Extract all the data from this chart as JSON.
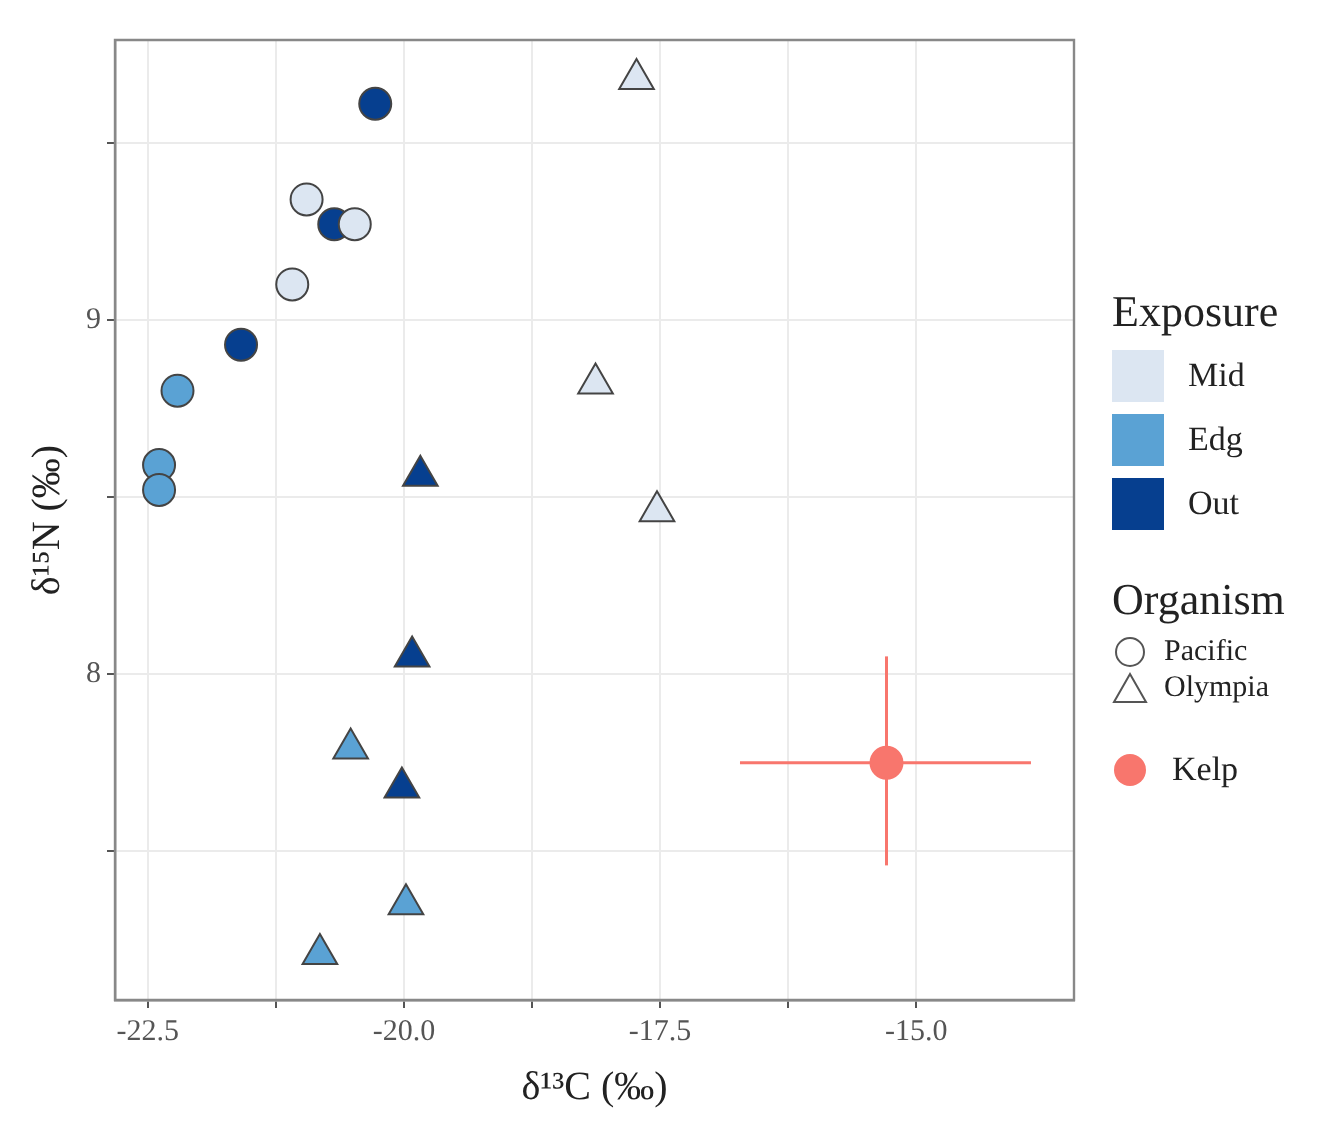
{
  "chart_data": {
    "type": "scatter",
    "xlabel": "δ¹³C (‰)",
    "ylabel": "δ¹⁵N (‰)",
    "xlim": [
      -22.82,
      -13.46
    ],
    "ylim": [
      7.08,
      9.79
    ],
    "xticks": [
      {
        "value": -22.5,
        "label": "-22.5"
      },
      {
        "value": -21.25,
        "label": null
      },
      {
        "value": -20,
        "label": "-20.0"
      },
      {
        "value": -18.75,
        "label": null
      },
      {
        "value": -17.5,
        "label": "-17.5"
      },
      {
        "value": -16.25,
        "label": null
      },
      {
        "value": -15,
        "label": "-15.0"
      }
    ],
    "yticks": [
      {
        "value": 7.5,
        "label": null
      },
      8,
      {
        "value": 8.5,
        "label": null
      },
      9,
      {
        "value": 9.5,
        "label": null
      }
    ],
    "grid": true,
    "legend": "right",
    "legend_title": "Exposure",
    "annotations": [
      "Organism",
      "Pacific",
      "Olympia"
    ],
    "series": [
      {
        "name": "Mid",
        "color": "#dce6f2",
        "marker": "circle",
        "x": [
          -20.95,
          -20.48,
          -21.09
        ],
        "values": [
          9.34,
          9.27,
          9.1
        ]
      },
      {
        "name": "Edg",
        "color": "#5aa2d4",
        "marker": "circle",
        "x": [
          -22.21,
          -22.39,
          -22.39
        ],
        "values": [
          8.8,
          8.59,
          8.52
        ]
      },
      {
        "name": "Out",
        "color": "#063f8f",
        "marker": "circle",
        "x": [
          -20.28,
          -20.68,
          -21.59
        ],
        "values": [
          9.61,
          9.27,
          8.93
        ]
      },
      {
        "color": "#dce6f2",
        "marker": "triangle",
        "x": [
          -17.73,
          -18.13,
          -17.53
        ],
        "values": [
          9.68,
          8.82,
          8.46
        ]
      },
      {
        "color": "#5aa2d4",
        "marker": "triangle",
        "x": [
          -20.52,
          -19.98,
          -20.82
        ],
        "values": [
          7.79,
          7.35,
          7.21
        ]
      },
      {
        "color": "#063f8f",
        "marker": "triangle",
        "x": [
          -19.84,
          -19.92,
          -20.02
        ],
        "values": [
          8.56,
          8.05,
          7.68
        ]
      },
      {
        "name": "Kelp",
        "color": "#f8766d",
        "marker": "circle",
        "x": [
          -15.29
        ],
        "values": [
          7.75
        ],
        "errors": [
          [
            7.46,
            8.05
          ]
        ],
        "xerrors": [
          [
            -16.72,
            -13.88
          ]
        ]
      }
    ]
  }
}
